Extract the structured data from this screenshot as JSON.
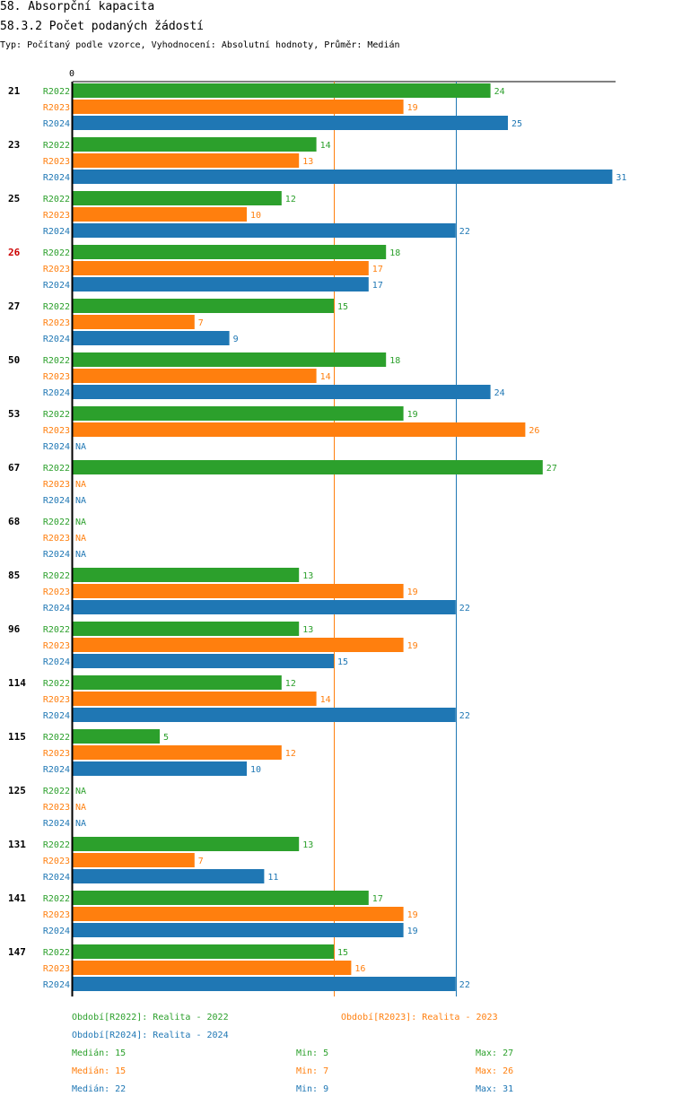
{
  "header": {
    "title": "58. Absorpční kapacita",
    "subtitle": "58.3.2 Počet podaných žádostí",
    "description": "Typ: Počítaný podle vzorce, Vyhodnocení: Absolutní hodnoty, Průměr: Medián"
  },
  "chart_data": {
    "type": "bar",
    "orientation": "horizontal",
    "title": "58.3.2 Počet podaných žádostí",
    "axis_zero_label": "0",
    "xlim": [
      0,
      31
    ],
    "reference_lines": [
      {
        "series": "R2023",
        "value": 15
      },
      {
        "series": "R2024",
        "value": 22
      }
    ],
    "highlight_color": "#cc0000",
    "na_label": "NA",
    "series": [
      {
        "name": "R2022",
        "color": "#2ca02c"
      },
      {
        "name": "R2023",
        "color": "#ff7f0e"
      },
      {
        "name": "R2024",
        "color": "#1f77b4"
      }
    ],
    "categories": [
      {
        "label": "21",
        "highlight": false,
        "values": [
          24,
          19,
          25
        ]
      },
      {
        "label": "23",
        "highlight": false,
        "values": [
          14,
          13,
          31
        ]
      },
      {
        "label": "25",
        "highlight": false,
        "values": [
          12,
          10,
          22
        ]
      },
      {
        "label": "26",
        "highlight": true,
        "values": [
          18,
          17,
          17
        ]
      },
      {
        "label": "27",
        "highlight": false,
        "values": [
          15,
          7,
          9
        ]
      },
      {
        "label": "50",
        "highlight": false,
        "values": [
          18,
          14,
          24
        ]
      },
      {
        "label": "53",
        "highlight": false,
        "values": [
          19,
          26,
          null
        ]
      },
      {
        "label": "67",
        "highlight": false,
        "values": [
          27,
          null,
          null
        ]
      },
      {
        "label": "68",
        "highlight": false,
        "values": [
          null,
          null,
          null
        ]
      },
      {
        "label": "85",
        "highlight": false,
        "values": [
          13,
          19,
          22
        ]
      },
      {
        "label": "96",
        "highlight": false,
        "values": [
          13,
          19,
          15
        ]
      },
      {
        "label": "114",
        "highlight": false,
        "values": [
          12,
          14,
          22
        ]
      },
      {
        "label": "115",
        "highlight": false,
        "values": [
          5,
          12,
          10
        ]
      },
      {
        "label": "125",
        "highlight": false,
        "values": [
          null,
          null,
          null
        ]
      },
      {
        "label": "131",
        "highlight": false,
        "values": [
          13,
          7,
          11
        ]
      },
      {
        "label": "141",
        "highlight": false,
        "values": [
          17,
          19,
          19
        ]
      },
      {
        "label": "147",
        "highlight": false,
        "values": [
          15,
          16,
          22
        ]
      }
    ]
  },
  "legend": {
    "r2022": "Období[R2022]: Realita - 2022",
    "r2023": "Období[R2023]: Realita - 2023",
    "r2024": "Období[R2024]: Realita - 2024"
  },
  "stats": [
    {
      "median": "Medián: 15",
      "min": "Min: 5",
      "max": "Max: 27",
      "color": "#2ca02c"
    },
    {
      "median": "Medián: 15",
      "min": "Min: 7",
      "max": "Max: 26",
      "color": "#ff7f0e"
    },
    {
      "median": "Medián: 22",
      "min": "Min: 9",
      "max": "Max: 31",
      "color": "#1f77b4"
    }
  ]
}
